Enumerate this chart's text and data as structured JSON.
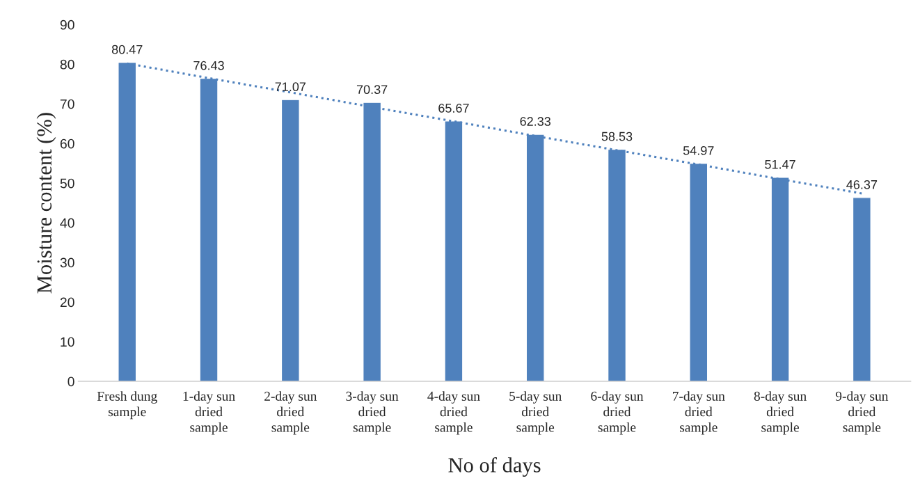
{
  "chart_data": {
    "type": "bar",
    "xlabel": "No of days",
    "ylabel": "Moisture content (%)",
    "categories": [
      "Fresh dung\nsample",
      "1-day sun\ndried\nsample",
      "2-day sun\ndried\nsample",
      "3-day sun\ndried\nsample",
      "4-day sun\ndried\nsample",
      "5-day sun\ndried\nsample",
      "6-day sun\ndried\nsample",
      "7-day sun\ndried\nsample",
      "8-day sun\ndried\nsample",
      "9-day sun\ndried\nsample"
    ],
    "series": [
      {
        "color": "#4f81bd",
        "values": [
          80.47,
          76.43,
          71.07,
          70.37,
          65.67,
          62.33,
          58.53,
          54.97,
          51.47,
          46.37
        ],
        "value_labels": [
          "80.47",
          "76.43",
          "71.07",
          "70.37",
          "65.67",
          "62.33",
          "58.53",
          "54.97",
          "51.47",
          "46.37"
        ]
      },
      {
        "type": "line",
        "color": "#4f81bd",
        "line_style": "dotted",
        "marker": "none",
        "values": [
          80.2,
          76.5,
          72.9,
          69.2,
          65.6,
          61.9,
          58.3,
          54.7,
          51.0,
          47.4
        ]
      }
    ],
    "ylim": [
      0,
      90
    ],
    "yticks": [
      0,
      10,
      20,
      30,
      40,
      50,
      60,
      70,
      80,
      90
    ],
    "grid": false
  }
}
